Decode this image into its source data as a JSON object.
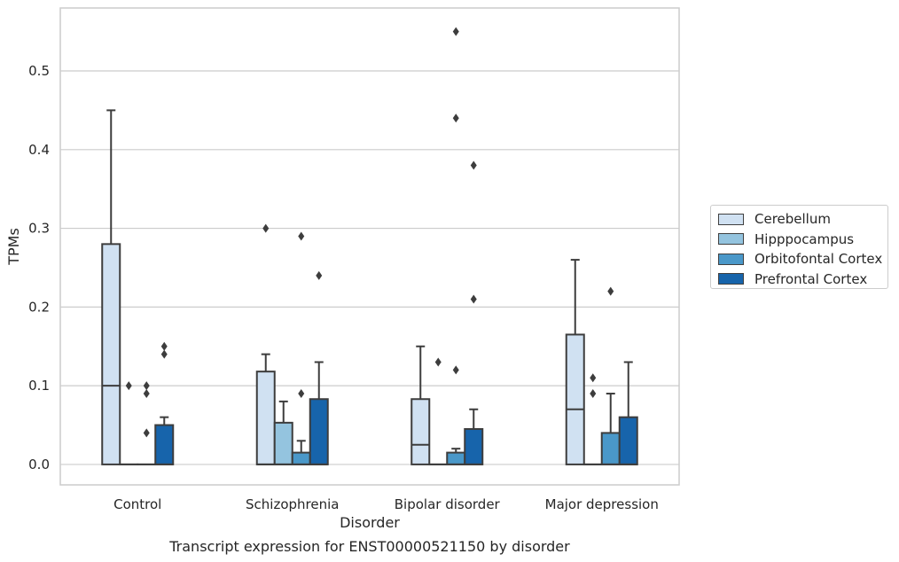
{
  "chart_data": {
    "type": "box",
    "title": "Transcript expression for ENST00000521150 by disorder",
    "xlabel": "Disorder",
    "ylabel": "TPMs",
    "ylim": [
      -0.026,
      0.58
    ],
    "yticks": [
      "0.0",
      "0.1",
      "0.2",
      "0.3",
      "0.4",
      "0.5"
    ],
    "grid": "horizontal",
    "legend_placement": "right",
    "categories": [
      "Control",
      "Schizophrenia",
      "Bipolar disorder",
      "Major depression"
    ],
    "series": [
      {
        "name": "Cerebellum",
        "color": "#d0e1f2",
        "boxes": [
          {
            "q1": 0,
            "median": 0.1,
            "q3": 0.28,
            "whisker_low": 0,
            "whisker_high": 0.45,
            "outliers": []
          },
          {
            "q1": 0,
            "median": 0,
            "q3": 0.118,
            "whisker_low": 0,
            "whisker_high": 0.14,
            "outliers": [
              0.3
            ]
          },
          {
            "q1": 0,
            "median": 0.025,
            "q3": 0.083,
            "whisker_low": 0,
            "whisker_high": 0.15,
            "outliers": []
          },
          {
            "q1": 0,
            "median": 0.07,
            "q3": 0.165,
            "whisker_low": 0,
            "whisker_high": 0.26,
            "outliers": []
          }
        ]
      },
      {
        "name": "Hipppocampus",
        "color": "#94c4df",
        "boxes": [
          {
            "q1": 0,
            "median": 0,
            "q3": 0,
            "whisker_low": 0,
            "whisker_high": 0,
            "outliers": [
              0.1
            ]
          },
          {
            "q1": 0,
            "median": 0,
            "q3": 0.053,
            "whisker_low": 0,
            "whisker_high": 0.08,
            "outliers": []
          },
          {
            "q1": 0,
            "median": 0,
            "q3": 0,
            "whisker_low": 0,
            "whisker_high": 0,
            "outliers": [
              0.13
            ]
          },
          {
            "q1": 0,
            "median": 0,
            "q3": 0,
            "whisker_low": 0,
            "whisker_high": 0,
            "outliers": [
              0.11,
              0.09
            ]
          }
        ]
      },
      {
        "name": "Orbitofontal Cortex",
        "color": "#4a98c9",
        "boxes": [
          {
            "q1": 0,
            "median": 0,
            "q3": 0,
            "whisker_low": 0,
            "whisker_high": 0,
            "outliers": [
              0.1,
              0.09,
              0.04
            ]
          },
          {
            "q1": 0,
            "median": 0,
            "q3": 0.015,
            "whisker_low": 0,
            "whisker_high": 0.03,
            "outliers": [
              0.29,
              0.09
            ]
          },
          {
            "q1": 0,
            "median": 0,
            "q3": 0.015,
            "whisker_low": 0,
            "whisker_high": 0.02,
            "outliers": [
              0.55,
              0.44,
              0.12
            ]
          },
          {
            "q1": 0,
            "median": 0,
            "q3": 0.04,
            "whisker_low": 0,
            "whisker_high": 0.09,
            "outliers": [
              0.22
            ]
          }
        ]
      },
      {
        "name": "Prefrontal Cortex",
        "color": "#1764ab",
        "boxes": [
          {
            "q1": 0,
            "median": 0,
            "q3": 0.05,
            "whisker_low": 0,
            "whisker_high": 0.06,
            "outliers": [
              0.15,
              0.14
            ]
          },
          {
            "q1": 0,
            "median": 0,
            "q3": 0.083,
            "whisker_low": 0,
            "whisker_high": 0.13,
            "outliers": [
              0.24
            ]
          },
          {
            "q1": 0,
            "median": 0,
            "q3": 0.045,
            "whisker_low": 0,
            "whisker_high": 0.07,
            "outliers": [
              0.38,
              0.21
            ]
          },
          {
            "q1": 0,
            "median": 0,
            "q3": 0.06,
            "whisker_low": 0,
            "whisker_high": 0.13,
            "outliers": []
          }
        ]
      }
    ]
  }
}
